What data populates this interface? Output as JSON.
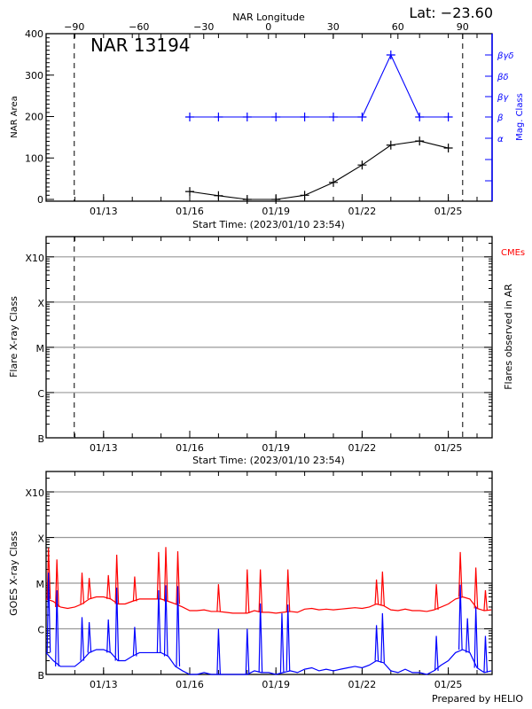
{
  "chart_data": [
    {
      "type": "line",
      "title": "NAR 13194",
      "corner_label": "Lat: −23.60",
      "xlabel": "Start Time: (2023/01/10 23:54)",
      "top_axis_label": "NAR Longitude",
      "top_axis_ticks": [
        "-90",
        "-60",
        "-30",
        "0",
        "30",
        "60",
        "90"
      ],
      "top_axis_tick_values": [
        -90,
        -60,
        -30,
        0,
        30,
        60,
        90
      ],
      "ylabel": "NAR Area",
      "ylim": [
        0,
        400
      ],
      "yticks": [
        "0",
        "100",
        "200",
        "300",
        "400"
      ],
      "xlim": [
        "2023-01-10T23:54",
        "2023-01-26T12:30"
      ],
      "xticks": [
        "01/13",
        "01/16",
        "01/19",
        "01/22",
        "01/25"
      ],
      "xtick_dates": [
        "2023-01-13",
        "2023-01-16",
        "2023-01-19",
        "2023-01-22",
        "2023-01-25"
      ],
      "dashed_lines_at_longitude": [
        -90,
        90
      ],
      "right_axis_label": "Mag. Class",
      "right_axis_ticks": [
        "α",
        "β",
        "βγ",
        "βδ",
        "βγδ"
      ],
      "series": [
        {
          "axis": "left",
          "color": "#000000",
          "x": [
            "2023-01-16",
            "2023-01-17",
            "2023-01-18",
            "2023-01-19",
            "2023-01-20",
            "2023-01-21",
            "2023-01-22",
            "2023-01-23",
            "2023-01-24",
            "2023-01-25"
          ],
          "y": [
            19,
            9,
            0,
            0,
            10,
            41,
            83,
            131,
            141,
            124
          ]
        },
        {
          "axis": "right",
          "color": "#0000ff",
          "x": [
            "2023-01-16",
            "2023-01-17",
            "2023-01-18",
            "2023-01-19",
            "2023-01-20",
            "2023-01-21",
            "2023-01-22",
            "2023-01-23",
            "2023-01-24",
            "2023-01-25"
          ],
          "y": [
            "β",
            "β",
            "β",
            "β",
            "β",
            "β",
            "β",
            "βγδ",
            "β",
            "β"
          ]
        }
      ]
    },
    {
      "type": "scatter",
      "xlabel": "Start Time: (2023/01/10 23:54)",
      "ylabel": "Flare X-ray Class",
      "right_axis_label": "Flares observed in AR",
      "legend_text": "CMEs",
      "legend_color": "#ff0000",
      "yscale": "log",
      "yticks": [
        "B",
        "C",
        "M",
        "X",
        "X10"
      ],
      "ytick_values": [
        1e-07,
        1e-06,
        1e-05,
        0.0001,
        0.001
      ],
      "ylim": [
        1e-07,
        0.0028
      ],
      "grid": true,
      "xticks": [
        "01/13",
        "01/16",
        "01/19",
        "01/22",
        "01/25"
      ],
      "dashed_lines_at_longitude": [
        -90,
        90
      ],
      "series": []
    },
    {
      "type": "line",
      "ylabel": "GOES X-ray Class",
      "yscale": "log",
      "yticks": [
        "B",
        "C",
        "M",
        "X",
        "X10"
      ],
      "ytick_values": [
        1e-07,
        1e-06,
        1e-05,
        0.0001,
        0.001
      ],
      "ylim": [
        1e-07,
        0.0028
      ],
      "grid": true,
      "xticks": [
        "01/13",
        "01/16",
        "01/19",
        "01/22",
        "01/25"
      ],
      "footer": "Prepared by HELIO",
      "series": [
        {
          "color": "#ff0000",
          "background_start": "2023-01-11T00:00",
          "background_step_hours": 6,
          "background_wm2": [
            4.5e-06,
            4e-06,
            3e-06,
            2.8e-06,
            3e-06,
            3.5e-06,
            4.5e-06,
            5e-06,
            5e-06,
            4.5e-06,
            3.5e-06,
            3.5e-06,
            4e-06,
            4.5e-06,
            4.5e-06,
            4.5e-06,
            4.5e-06,
            4e-06,
            3.5e-06,
            3e-06,
            2.5e-06,
            2.5e-06,
            2.6e-06,
            2.4e-06,
            2.4e-06,
            2.3e-06,
            2.2e-06,
            2.2e-06,
            2.2e-06,
            2.5e-06,
            2.3e-06,
            2.3e-06,
            2.2e-06,
            2.3e-06,
            2.4e-06,
            2.3e-06,
            2.7e-06,
            2.8e-06,
            2.6e-06,
            2.7e-06,
            2.6e-06,
            2.7e-06,
            2.8e-06,
            2.9e-06,
            2.8e-06,
            3e-06,
            3.5e-06,
            3.2e-06,
            2.6e-06,
            2.5e-06,
            2.7e-06,
            2.5e-06,
            2.5e-06,
            2.4e-06,
            2.6e-06,
            3e-06,
            3.5e-06,
            4.5e-06,
            5e-06,
            4.5e-06,
            2.8e-06,
            2.5e-06,
            2.6e-06
          ],
          "peaks_time": [
            "2023-01-11T02:00",
            "2023-01-11T09:00",
            "2023-01-12T06:00",
            "2023-01-12T12:00",
            "2023-01-13T04:00",
            "2023-01-13T11:00",
            "2023-01-14T02:00",
            "2023-01-14T22:00",
            "2023-01-15T04:00",
            "2023-01-15T14:00",
            "2023-01-17T00:00",
            "2023-01-18T00:00",
            "2023-01-18T11:00",
            "2023-01-19T10:00",
            "2023-01-22T12:00",
            "2023-01-22T17:00",
            "2023-01-24T14:00",
            "2023-01-25T10:00",
            "2023-01-25T23:00",
            "2023-01-26T07:00"
          ],
          "peaks_wm2": [
            5.9e-05,
            3.3e-05,
            1.7e-05,
            1.3e-05,
            1.5e-05,
            4.2e-05,
            1.4e-05,
            4.8e-05,
            6.2e-05,
            5e-05,
            9.5e-06,
            2e-05,
            2e-05,
            2e-05,
            1.2e-05,
            1.8e-05,
            9.5e-06,
            4.8e-05,
            2.2e-05,
            7e-06
          ]
        },
        {
          "color": "#0000ff",
          "background_start": "2023-01-11T00:00",
          "background_step_hours": 6,
          "background_wm2": [
            3e-07,
            2e-07,
            1.5e-07,
            1.5e-07,
            1.5e-07,
            2e-07,
            3e-07,
            3.5e-07,
            3.5e-07,
            3e-07,
            2e-07,
            2e-07,
            2.5e-07,
            3e-07,
            3e-07,
            3e-07,
            3e-07,
            2.5e-07,
            1.5e-07,
            1.2e-07,
            1e-07,
            1e-07,
            1.1e-07,
            1e-07,
            1e-07,
            1e-07,
            1e-07,
            1e-07,
            1e-07,
            1.2e-07,
            1.1e-07,
            1.1e-07,
            1e-07,
            1.1e-07,
            1.2e-07,
            1.1e-07,
            1.3e-07,
            1.4e-07,
            1.2e-07,
            1.3e-07,
            1.2e-07,
            1.3e-07,
            1.4e-07,
            1.5e-07,
            1.4e-07,
            1.6e-07,
            2e-07,
            1.8e-07,
            1.2e-07,
            1.1e-07,
            1.3e-07,
            1.1e-07,
            1.1e-07,
            1e-07,
            1.2e-07,
            1.6e-07,
            2e-07,
            3e-07,
            3.5e-07,
            3e-07,
            1.4e-07,
            1.1e-07,
            1.2e-07
          ],
          "peaks_time": [
            "2023-01-11T02:00",
            "2023-01-11T09:00",
            "2023-01-12T06:00",
            "2023-01-12T12:00",
            "2023-01-13T04:00",
            "2023-01-13T11:00",
            "2023-01-14T02:00",
            "2023-01-14T22:00",
            "2023-01-15T04:00",
            "2023-01-15T14:00",
            "2023-01-17T00:00",
            "2023-01-18T00:00",
            "2023-01-18T11:00",
            "2023-01-19T05:00",
            "2023-01-19T10:00",
            "2023-01-22T12:00",
            "2023-01-22T17:00",
            "2023-01-24T14:00",
            "2023-01-25T10:00",
            "2023-01-25T16:00",
            "2023-01-25T23:00",
            "2023-01-26T07:00"
          ],
          "peaks_wm2": [
            1.7e-05,
            7e-06,
            1.8e-06,
            1.4e-06,
            1.6e-06,
            8e-06,
            1.1e-06,
            7e-06,
            9e-06,
            8.6e-06,
            1e-06,
            1e-06,
            3.6e-06,
            2.2e-06,
            3.4e-06,
            1.2e-06,
            2.2e-06,
            7e-07,
            9.3e-06,
            1.7e-06,
            3e-06,
            7e-07
          ]
        }
      ]
    }
  ]
}
